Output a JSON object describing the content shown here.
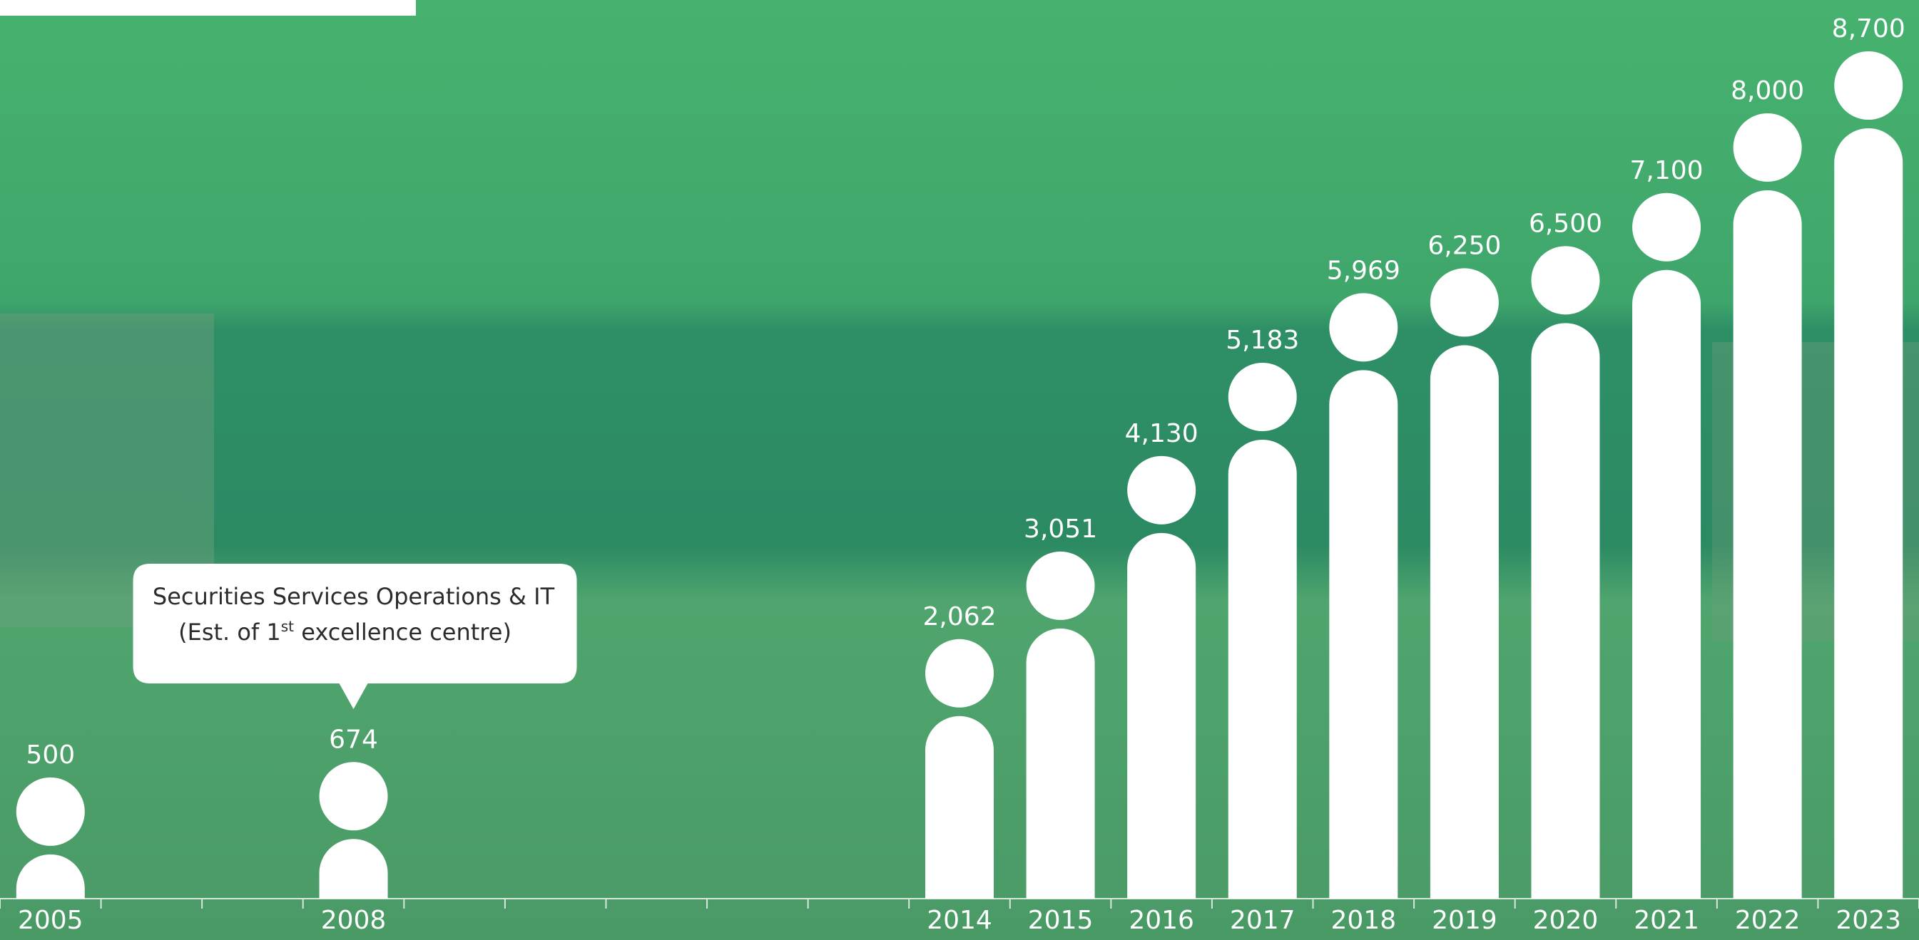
{
  "chart_data": {
    "type": "pillar",
    "x": [
      2005,
      2008,
      2014,
      2015,
      2016,
      2017,
      2018,
      2019,
      2020,
      2021,
      2022,
      2023
    ],
    "values": [
      500,
      674,
      2062,
      3051,
      4130,
      5183,
      5969,
      6250,
      6500,
      7100,
      8000,
      8700
    ],
    "value_labels": [
      "500",
      "674",
      "2,062",
      "3,051",
      "4,130",
      "5,183",
      "5,969",
      "6,250",
      "6,500",
      "7,100",
      "8,000",
      "8,700"
    ],
    "xlim": [
      2004.5,
      2023.5
    ],
    "color": "#ffffff",
    "annotation": {
      "x": 2008,
      "line1": "Securities Services Operations & IT",
      "line2_start": "(Est. of 1",
      "line2_sup": "st",
      "line2_end": " excellence centre)"
    }
  }
}
